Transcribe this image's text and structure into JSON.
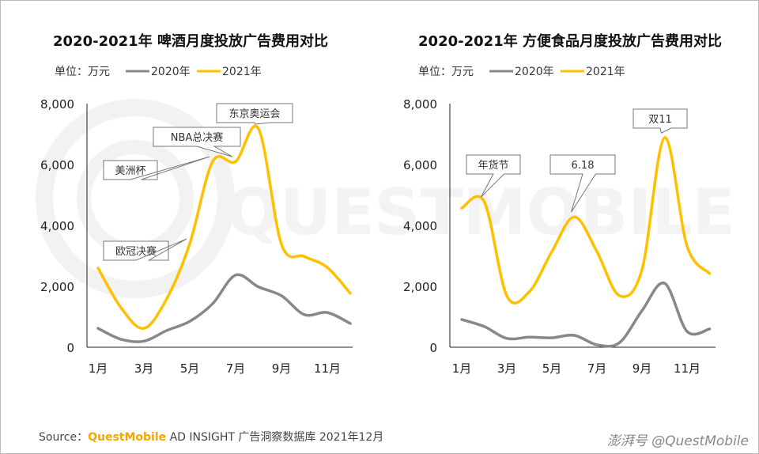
{
  "colors": {
    "2020": "#888888",
    "2021": "#ffc000"
  },
  "chart_data": [
    {
      "type": "line",
      "title": "2020-2021年 啤酒月度投放广告费用对比",
      "unit": "单位：万元",
      "categories": [
        "1月",
        "2月",
        "3月",
        "4月",
        "5月",
        "6月",
        "7月",
        "8月",
        "9月",
        "10月",
        "11月",
        "12月"
      ],
      "tick_labels": [
        "1月",
        "3月",
        "5月",
        "7月",
        "9月",
        "11月"
      ],
      "yticks": [
        "0",
        "2,000",
        "4,000",
        "6,000",
        "8,000"
      ],
      "ylim": [
        0,
        8000
      ],
      "series": [
        {
          "name": "2020年",
          "values": [
            620,
            260,
            200,
            550,
            850,
            1430,
            2370,
            1980,
            1690,
            1070,
            1140,
            780
          ]
        },
        {
          "name": "2021年",
          "values": [
            2600,
            1300,
            620,
            1600,
            3400,
            6100,
            6100,
            7170,
            3380,
            2980,
            2620,
            1770
          ]
        }
      ],
      "annotations": [
        {
          "text": "欧冠决赛",
          "month": 5
        },
        {
          "text": "美洲杯",
          "month": 6
        },
        {
          "text": "NBA总决赛",
          "month": 7
        },
        {
          "text": "东京奥运会",
          "month": 8
        }
      ]
    },
    {
      "type": "line",
      "title": "2020-2021年 方便食品月度投放广告费用对比",
      "unit": "单位：万元",
      "categories": [
        "1月",
        "2月",
        "3月",
        "4月",
        "5月",
        "6月",
        "7月",
        "8月",
        "9月",
        "10月",
        "11月",
        "12月"
      ],
      "tick_labels": [
        "1月",
        "3月",
        "5月",
        "7月",
        "9月",
        "11月"
      ],
      "yticks": [
        "0",
        "2,000",
        "4,000",
        "6,000",
        "8,000"
      ],
      "ylim": [
        0,
        8000
      ],
      "series": [
        {
          "name": "2020年",
          "values": [
            910,
            680,
            290,
            330,
            310,
            390,
            80,
            150,
            1200,
            2100,
            520,
            600
          ]
        },
        {
          "name": "2021年",
          "values": [
            4570,
            4780,
            1690,
            1820,
            3140,
            4280,
            3140,
            1690,
            2550,
            6880,
            3320,
            2420
          ]
        }
      ],
      "annotations": [
        {
          "text": "年货节",
          "month": 2
        },
        {
          "text": "6.18",
          "month": 6
        },
        {
          "text": "双11",
          "month": 10
        }
      ]
    }
  ],
  "footer": {
    "source": "Source：",
    "brand": "QuestMobile",
    "rest": " AD INSIGHT 广告洞察数据库 2021年12月"
  },
  "watermark": "澎湃号 @QuestMobile",
  "bg_watermark": "QUESTMOBILE"
}
